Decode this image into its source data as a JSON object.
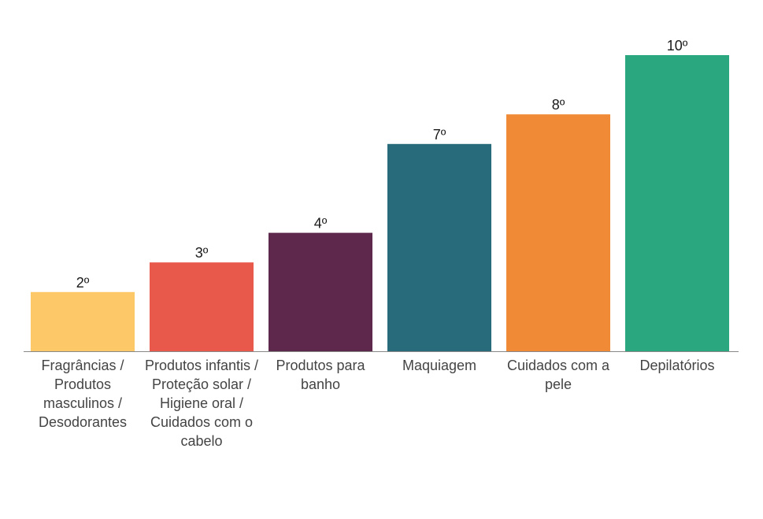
{
  "chart_data": {
    "type": "bar",
    "categories": [
      "Fragrâncias / Produtos masculinos / Desodorantes",
      "Produtos infantis / Proteção solar / Higiene oral / Cuidados com o cabelo",
      "Produtos para banho",
      "Maquiagem",
      "Cuidados com a pele",
      "Depilatórios"
    ],
    "values": [
      2,
      3,
      4,
      7,
      8,
      10
    ],
    "data_labels": [
      "2º",
      "3º",
      "4º",
      "7º",
      "8º",
      "10º"
    ],
    "colors": [
      "#fdc868",
      "#e8594c",
      "#5e284d",
      "#286b7a",
      "#f18a36",
      "#2ba77f"
    ],
    "title": "",
    "xlabel": "",
    "ylabel": "",
    "ylim": [
      0,
      10
    ],
    "grid": false,
    "legend": "none"
  }
}
